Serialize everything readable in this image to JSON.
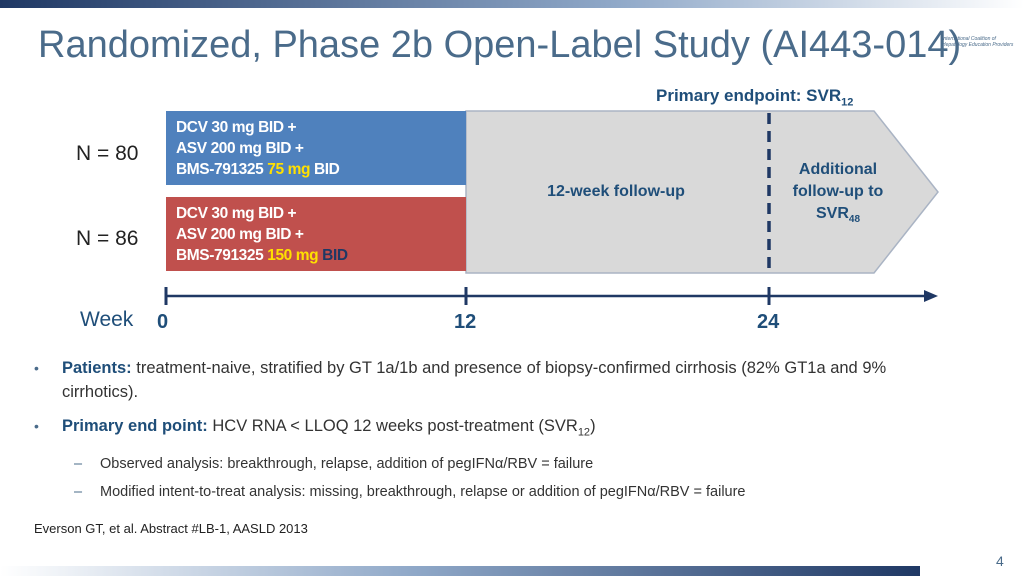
{
  "colors": {
    "title": "#4a6b8a",
    "arm1": "#4f81bd",
    "arm2": "#c0504d",
    "followup_fill": "#d9d9d9",
    "accent_dark": "#1f4e79",
    "highlight": "#ffe000"
  },
  "slide": {
    "title": "Randomized, Phase 2b Open-Label Study (AI443-014)",
    "logo_text": "International Coalition of Hepatology Education Providers",
    "page_number": "4"
  },
  "diagram": {
    "primary_endpoint_label": "Primary endpoint: SVR",
    "primary_endpoint_sub": "12",
    "arms": [
      {
        "n_label": "N = 80",
        "line1": "DCV 30 mg BID +",
        "line2": "ASV 200 mg BID +",
        "line3_prefix": "BMS-791325 ",
        "line3_dose": "75 mg",
        "line3_suffix": " BID"
      },
      {
        "n_label": "N = 86",
        "line1": "DCV 30 mg BID +",
        "line2": "ASV 200 mg BID +",
        "line3_prefix": "BMS-791325 ",
        "line3_dose": "150 mg",
        "line3_suffix": " BID"
      }
    ],
    "followup_label": "12-week follow-up",
    "additional_line1": "Additional",
    "additional_line2": "follow-up to",
    "additional_line3": "SVR",
    "additional_sub": "48",
    "axis_label": "Week",
    "ticks": [
      "0",
      "12",
      "24"
    ]
  },
  "bullets": {
    "b1_label": "Patients:",
    "b1_text": " treatment-naive, stratified by GT 1a/1b and presence of biopsy-confirmed cirrhosis (82% GT1a and 9% cirrhotics).",
    "b2_label": "Primary end point:",
    "b2_text": " HCV RNA < LLOQ 12 weeks post-treatment (SVR",
    "b2_sub": "12",
    "b2_close": ")",
    "sub1": "Observed analysis: breakthrough, relapse, addition of pegIFNα/RBV = failure",
    "sub2": "Modified intent-to-treat analysis: missing, breakthrough, relapse or addition of pegIFNα/RBV = failure"
  },
  "citation": "Everson GT, et al. Abstract #LB-1, AASLD 2013"
}
